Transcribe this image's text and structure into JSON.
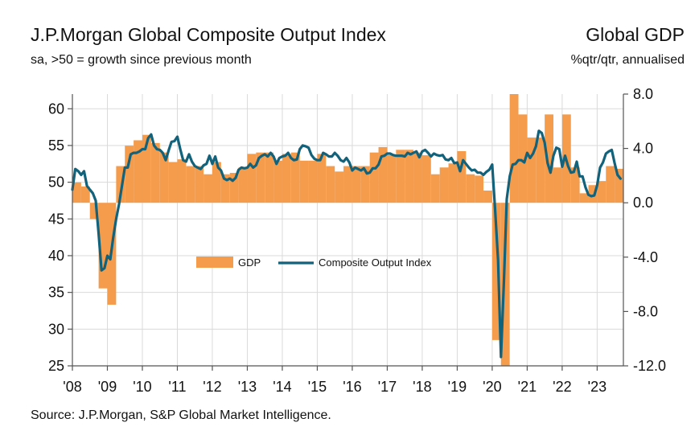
{
  "header": {
    "title": "J.P.Morgan Global Composite Output Index",
    "subtitle": "sa, >50 = growth since previous month",
    "right_title": "Global GDP",
    "right_subtitle": "%qtr/qtr, annualised"
  },
  "footer": {
    "source": "Source: J.P.Morgan, S&P Global Market Intelligence."
  },
  "colors": {
    "gdp": "#F59B4C",
    "index": "#11627A",
    "grid": "#dadada",
    "axis": "#555555"
  },
  "chart_data": {
    "type": "bar+line",
    "x_tick_labels": [
      "'08",
      "'09",
      "'10",
      "'11",
      "'12",
      "'13",
      "'14",
      "'15",
      "'16",
      "'17",
      "'18",
      "'19",
      "'20",
      "'21",
      "'22",
      "'23"
    ],
    "x_range": [
      2008.0,
      2023.75
    ],
    "left_axis": {
      "ylim": [
        25,
        62
      ],
      "ticks": [
        25,
        30,
        35,
        40,
        45,
        50,
        55,
        60
      ]
    },
    "right_axis": {
      "ylim": [
        -12.0,
        8.0
      ],
      "ticks": [
        "8.0",
        "4.0",
        "0.0",
        "-4.0",
        "-8.0",
        "-12.0"
      ],
      "tick_values": [
        8,
        4,
        0,
        -4,
        -8,
        -12
      ]
    },
    "grid": true,
    "legend": {
      "position": "center",
      "entries": [
        "GDP",
        "Composite Output Index"
      ]
    },
    "series": [
      {
        "name": "GDP",
        "type": "bar",
        "axis": "right",
        "x": [
          2008.0,
          2008.25,
          2008.5,
          2008.75,
          2009.0,
          2009.25,
          2009.5,
          2009.75,
          2010.0,
          2010.25,
          2010.5,
          2010.75,
          2011.0,
          2011.25,
          2011.5,
          2011.75,
          2012.0,
          2012.25,
          2012.5,
          2012.75,
          2013.0,
          2013.25,
          2013.5,
          2013.75,
          2014.0,
          2014.25,
          2014.5,
          2014.75,
          2015.0,
          2015.25,
          2015.5,
          2015.75,
          2016.0,
          2016.25,
          2016.5,
          2016.75,
          2017.0,
          2017.25,
          2017.5,
          2017.75,
          2018.0,
          2018.25,
          2018.5,
          2018.75,
          2019.0,
          2019.25,
          2019.5,
          2019.75,
          2020.0,
          2020.25,
          2020.5,
          2020.75,
          2021.0,
          2021.25,
          2021.5,
          2021.75,
          2022.0,
          2022.25,
          2022.5,
          2022.75,
          2023.0,
          2023.25,
          2023.5
        ],
        "values": [
          1.5,
          1.2,
          -1.2,
          -6.3,
          -7.5,
          2.7,
          4.2,
          4.6,
          5.0,
          4.4,
          3.7,
          3.0,
          3.2,
          2.7,
          2.7,
          2.1,
          3.0,
          2.1,
          2.2,
          2.6,
          3.6,
          3.7,
          3.7,
          3.1,
          3.6,
          3.7,
          3.1,
          3.1,
          3.6,
          2.7,
          2.3,
          2.7,
          2.7,
          2.7,
          3.7,
          4.1,
          3.5,
          3.9,
          3.9,
          3.7,
          3.5,
          2.1,
          2.6,
          2.9,
          3.8,
          2.1,
          2.0,
          0.9,
          -10.1,
          -13.7,
          8.1,
          6.5,
          4.8,
          4.8,
          6.5,
          2.6,
          6.5,
          2.6,
          0.7,
          1.3,
          1.6,
          2.7,
          2.5
        ]
      },
      {
        "name": "Composite Output Index",
        "type": "line",
        "axis": "left",
        "x": [
          2008.0,
          2008.083,
          2008.167,
          2008.25,
          2008.333,
          2008.417,
          2008.5,
          2008.583,
          2008.667,
          2008.75,
          2008.833,
          2008.917,
          2009.0,
          2009.083,
          2009.167,
          2009.25,
          2009.333,
          2009.417,
          2009.5,
          2009.583,
          2009.667,
          2009.75,
          2009.833,
          2009.917,
          2010.0,
          2010.083,
          2010.167,
          2010.25,
          2010.333,
          2010.417,
          2010.5,
          2010.583,
          2010.667,
          2010.75,
          2010.833,
          2010.917,
          2011.0,
          2011.083,
          2011.167,
          2011.25,
          2011.333,
          2011.417,
          2011.5,
          2011.583,
          2011.667,
          2011.75,
          2011.833,
          2011.917,
          2012.0,
          2012.083,
          2012.167,
          2012.25,
          2012.333,
          2012.417,
          2012.5,
          2012.583,
          2012.667,
          2012.75,
          2012.833,
          2012.917,
          2013.0,
          2013.083,
          2013.167,
          2013.25,
          2013.333,
          2013.417,
          2013.5,
          2013.583,
          2013.667,
          2013.75,
          2013.833,
          2013.917,
          2014.0,
          2014.083,
          2014.167,
          2014.25,
          2014.333,
          2014.417,
          2014.5,
          2014.583,
          2014.667,
          2014.75,
          2014.833,
          2014.917,
          2015.0,
          2015.083,
          2015.167,
          2015.25,
          2015.333,
          2015.417,
          2015.5,
          2015.583,
          2015.667,
          2015.75,
          2015.833,
          2015.917,
          2016.0,
          2016.083,
          2016.167,
          2016.25,
          2016.333,
          2016.417,
          2016.5,
          2016.583,
          2016.667,
          2016.75,
          2016.833,
          2016.917,
          2017.0,
          2017.083,
          2017.167,
          2017.25,
          2017.333,
          2017.417,
          2017.5,
          2017.583,
          2017.667,
          2017.75,
          2017.833,
          2017.917,
          2018.0,
          2018.083,
          2018.167,
          2018.25,
          2018.333,
          2018.417,
          2018.5,
          2018.583,
          2018.667,
          2018.75,
          2018.833,
          2018.917,
          2019.0,
          2019.083,
          2019.167,
          2019.25,
          2019.333,
          2019.417,
          2019.5,
          2019.583,
          2019.667,
          2019.75,
          2019.833,
          2019.917,
          2020.0,
          2020.083,
          2020.167,
          2020.25,
          2020.333,
          2020.417,
          2020.5,
          2020.583,
          2020.667,
          2020.75,
          2020.833,
          2020.917,
          2021.0,
          2021.083,
          2021.167,
          2021.25,
          2021.333,
          2021.417,
          2021.5,
          2021.583,
          2021.667,
          2021.75,
          2021.833,
          2021.917,
          2022.0,
          2022.083,
          2022.167,
          2022.25,
          2022.333,
          2022.417,
          2022.5,
          2022.583,
          2022.667,
          2022.75,
          2022.833,
          2022.917,
          2023.0,
          2023.083,
          2023.167,
          2023.25,
          2023.333,
          2023.417,
          2023.5,
          2023.583,
          2023.667
        ],
        "values": [
          49.0,
          51.8,
          51.5,
          51.0,
          51.5,
          49.5,
          49.0,
          48.5,
          47.5,
          43.0,
          38.0,
          38.3,
          40.0,
          39.5,
          42.5,
          45.0,
          47.0,
          49.5,
          52.0,
          52.0,
          53.8,
          54.0,
          54.0,
          54.2,
          54.5,
          54.5,
          56.0,
          56.5,
          55.0,
          54.5,
          54.4,
          54.0,
          53.0,
          54.3,
          55.5,
          55.6,
          56.2,
          54.5,
          53.0,
          52.8,
          53.8,
          52.8,
          52.2,
          52.0,
          51.8,
          52.3,
          52.5,
          53.6,
          52.5,
          53.5,
          52.0,
          51.6,
          50.5,
          50.3,
          50.5,
          50.2,
          50.6,
          51.7,
          52.0,
          51.9,
          52.0,
          52.5,
          52.0,
          52.3,
          53.3,
          53.6,
          53.8,
          53.5,
          54.0,
          53.5,
          52.5,
          53.3,
          53.5,
          53.6,
          54.0,
          53.3,
          53.0,
          53.1,
          54.5,
          55.0,
          54.9,
          54.7,
          53.7,
          53.2,
          53.0,
          53.0,
          54.0,
          53.8,
          53.5,
          53.5,
          54.0,
          53.6,
          53.0,
          52.8,
          53.3,
          52.7,
          51.6,
          52.0,
          51.8,
          51.6,
          51.9,
          51.2,
          51.3,
          51.9,
          51.9,
          52.4,
          53.5,
          53.6,
          53.9,
          53.9,
          53.7,
          53.6,
          53.6,
          53.6,
          53.5,
          54.0,
          53.8,
          54.0,
          54.2,
          53.4,
          54.2,
          54.4,
          54.0,
          53.5,
          53.9,
          53.7,
          53.6,
          53.7,
          53.1,
          53.0,
          53.3,
          52.6,
          52.7,
          51.5,
          53.0,
          52.5,
          52.0,
          51.6,
          51.7,
          51.3,
          51.3,
          51.0,
          51.4,
          51.7,
          52.4,
          46.3,
          39.4,
          26.2,
          36.3,
          47.7,
          50.8,
          52.4,
          52.5,
          53.0,
          53.0,
          52.7,
          54.0,
          53.3,
          53.9,
          54.9,
          57.0,
          56.7,
          55.4,
          52.6,
          51.3,
          53.6,
          54.7,
          54.5,
          52.1,
          53.6,
          52.2,
          51.3,
          51.4,
          52.8,
          50.8,
          50.8,
          49.3,
          48.3,
          48.1,
          48.2,
          49.6,
          52.0,
          52.7,
          53.9,
          54.2,
          54.4,
          52.6,
          51.0,
          50.5
        ]
      }
    ]
  }
}
